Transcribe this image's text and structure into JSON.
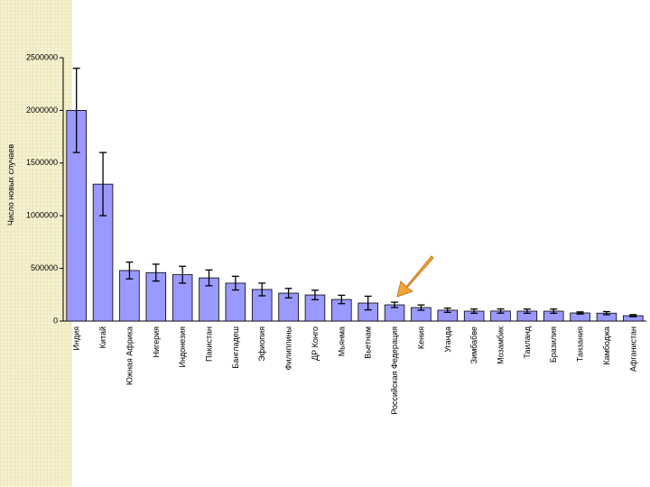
{
  "chart_data": {
    "type": "bar",
    "y_label": "Число новых случаев",
    "categories": [
      "Индия",
      "Китай",
      "Южная Африка",
      "Нигерия",
      "Индонезия",
      "Пакистан",
      "Бангладеш",
      "Эфиопия",
      "Филиппины",
      "ДР Конго",
      "Мьянма",
      "Вьетнам",
      "Российская Федерация",
      "Кения",
      "Уганда",
      "Зимбабве",
      "Мозамбик",
      "Таиланд",
      "Бразилия",
      "Танзания",
      "Камбоджа",
      "Афганистан"
    ],
    "values": [
      2000000,
      1300000,
      480000,
      460000,
      440000,
      410000,
      360000,
      300000,
      265000,
      248000,
      205000,
      171000,
      154000,
      128000,
      103000,
      94000,
      95000,
      94000,
      94000,
      77000,
      75000,
      51000
    ],
    "errors": [
      400000,
      300000,
      80000,
      80000,
      80000,
      75000,
      65000,
      60000,
      45000,
      45000,
      40000,
      65000,
      25000,
      25000,
      20000,
      20000,
      20000,
      20000,
      20000,
      10000,
      15000,
      10000
    ],
    "color": "#9999ff",
    "ylim": [
      0,
      2500000
    ],
    "yticks": [
      0,
      500000,
      1000000,
      1500000,
      2000000,
      2500000
    ]
  }
}
